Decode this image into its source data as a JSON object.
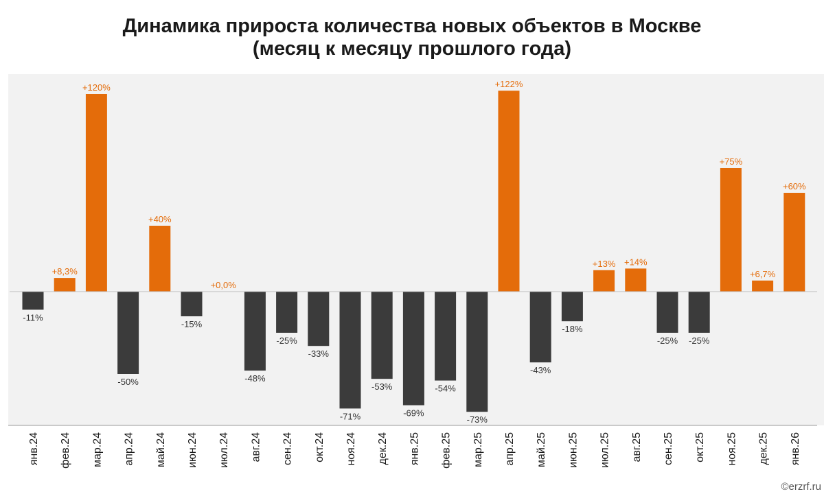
{
  "title_line1": "Динамика прироста количества новых объектов в Москве",
  "title_line2": "(месяц к месяцу прошлого года)",
  "watermark": "©erzrf.ru",
  "colors": {
    "positive": "#e46c0a",
    "negative": "#3b3b3b",
    "plot_bg": "#f2f2f2"
  },
  "chart_data": {
    "type": "bar",
    "title": "Динамика прироста количества новых объектов в Москве (месяц к месяцу прошлого года)",
    "categories": [
      "янв.24",
      "фев.24",
      "мар.24",
      "апр.24",
      "май.24",
      "июн.24",
      "июл.24",
      "авг.24",
      "сен.24",
      "окт.24",
      "ноя.24",
      "дек.24",
      "янв.25",
      "фев.25",
      "мар.25",
      "апр.25",
      "май.25",
      "июн.25",
      "июл.25",
      "авг.25",
      "сен.25",
      "окт.25",
      "ноя.25",
      "дек.25",
      "янв.26"
    ],
    "values": [
      -11,
      8.3,
      120,
      -50,
      40,
      -15,
      0,
      -48,
      -25,
      -33,
      -71,
      -53,
      -69,
      -54,
      -73,
      122,
      -43,
      -18,
      13,
      14,
      -25,
      -25,
      75,
      6.7,
      60
    ],
    "labels": [
      "-11%",
      "+8,3%",
      "+120%",
      "-50%",
      "+40%",
      "-15%",
      "+0,0%",
      "-48%",
      "-25%",
      "-33%",
      "-71%",
      "-53%",
      "-69%",
      "-54%",
      "-73%",
      "+122%",
      "-43%",
      "-18%",
      "+13%",
      "+14%",
      "-25%",
      "-25%",
      "+75%",
      "+6,7%",
      "+60%"
    ],
    "ylim": [
      -80,
      130
    ],
    "grid": false,
    "legend": "none"
  }
}
